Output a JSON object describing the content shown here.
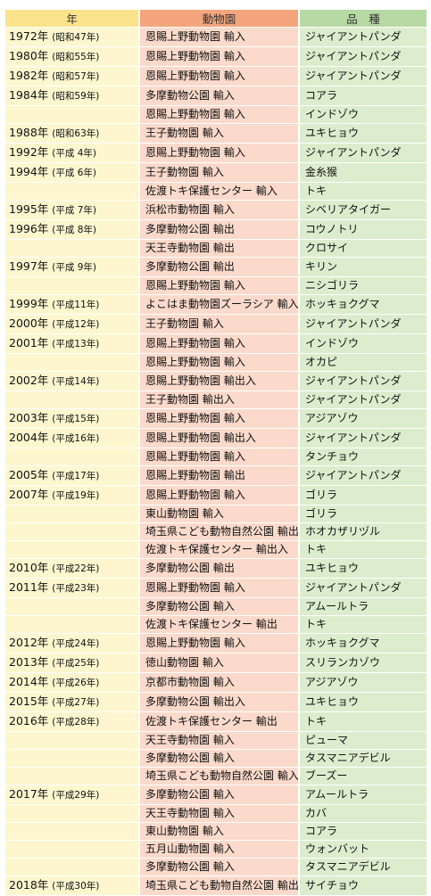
{
  "headers": {
    "year": "年",
    "zoo": "動物園",
    "species": "品　種"
  },
  "rows": [
    {
      "year": "1972年",
      "era": "(昭和47年)",
      "zoo": "恩賜上野動物園 輸入",
      "species": "ジャイアントパンダ"
    },
    {
      "year": "1980年",
      "era": "(昭和55年)",
      "zoo": "恩賜上野動物園 輸入",
      "species": "ジャイアントパンダ"
    },
    {
      "year": "1982年",
      "era": "(昭和57年)",
      "zoo": "恩賜上野動物園 輸入",
      "species": "ジャイアントパンダ"
    },
    {
      "year": "1984年",
      "era": "(昭和59年)",
      "zoo": "多摩動物公園 輸入",
      "species": "コアラ"
    },
    {
      "year": "",
      "era": "",
      "zoo": "恩賜上野動物園 輸入",
      "species": "インドゾウ"
    },
    {
      "year": "1988年",
      "era": "(昭和63年)",
      "zoo": "王子動物園 輸入",
      "species": "ユキヒョウ"
    },
    {
      "year": "1992年",
      "era": "(平成 4年)",
      "zoo": "恩賜上野動物園 輸入",
      "species": "ジャイアントパンダ"
    },
    {
      "year": "1994年",
      "era": "(平成 6年)",
      "zoo": "王子動物園 輸入",
      "species": "金糸猴"
    },
    {
      "year": "",
      "era": "",
      "zoo": "佐渡トキ保護センター 輸入",
      "species": "トキ"
    },
    {
      "year": "1995年",
      "era": "(平成 7年)",
      "zoo": "浜松市動物園 輸入",
      "species": "シベリアタイガー"
    },
    {
      "year": "1996年",
      "era": "(平成 8年)",
      "zoo": "多摩動物公園 輸出",
      "species": "コウノトリ"
    },
    {
      "year": "",
      "era": "",
      "zoo": "天王寺動物園 輸出",
      "species": "クロサイ"
    },
    {
      "year": "1997年",
      "era": "(平成 9年)",
      "zoo": " 多摩動物公園 輸出",
      "species": "キリン"
    },
    {
      "year": "",
      "era": "",
      "zoo": "恩賜上野動物園 輸入",
      "species": "ニシゴリラ"
    },
    {
      "year": "1999年",
      "era": "(平成11年)",
      "zoo": "よこはま動物園ズーラシア 輸入",
      "species": "ホッキョクグマ"
    },
    {
      "year": "2000年",
      "era": "(平成12年)",
      "zoo": "王子動物園 輸入",
      "species": "ジャイアントパンダ"
    },
    {
      "year": "2001年",
      "era": "(平成13年)",
      "zoo": "恩賜上野動物園 輸入",
      "species": "インドゾウ"
    },
    {
      "year": "",
      "era": "",
      "zoo": "恩賜上野動物園 輸入",
      "species": "オカピ"
    },
    {
      "year": "2002年",
      "era": "(平成14年)",
      "zoo": "恩賜上野動物園 輸出入",
      "species": "ジャイアントパンダ"
    },
    {
      "year": "",
      "era": "",
      "zoo": "王子動物園 輸出入",
      "species": "ジャイアントパンダ"
    },
    {
      "year": "2003年",
      "era": "(平成15年)",
      "zoo": "恩賜上野動物園 輸入",
      "species": "アジアゾウ"
    },
    {
      "year": "2004年",
      "era": "(平成16年)",
      "zoo": "恩賜上野動物園 輸出入",
      "species": "ジャイアントパンダ"
    },
    {
      "year": "",
      "era": "",
      "zoo": "恩賜上野動物園 輸入",
      "species": "タンチョウ"
    },
    {
      "year": "2005年",
      "era": "(平成17年)",
      "zoo": "恩賜上野動物園 輸出",
      "species": "ジャイアントパンダ"
    },
    {
      "year": "2007年",
      "era": "(平成19年)",
      "zoo": "恩賜上野動物園 輸入",
      "species": "ゴリラ"
    },
    {
      "year": "",
      "era": "",
      "zoo": "東山動物園 輸入",
      "species": "ゴリラ"
    },
    {
      "year": "",
      "era": "",
      "zoo": "埼玉県こども動物自然公園 輸出",
      "species": "ホオカザリヅル"
    },
    {
      "year": "",
      "era": "",
      "zoo": "佐渡トキ保護センター 輸出入",
      "species": "トキ"
    },
    {
      "year": "2010年",
      "era": "(平成22年)",
      "zoo": "多摩動物公園 輸出",
      "species": "ユキヒョウ"
    },
    {
      "year": "2011年",
      "era": "(平成23年)",
      "zoo": "恩賜上野動物園 輸入",
      "species": "ジャイアントパンダ"
    },
    {
      "year": "",
      "era": "",
      "zoo": "多摩動物公園 輸入",
      "species": "アムールトラ"
    },
    {
      "year": "",
      "era": "",
      "zoo": "佐渡トキ保護センター 輸出",
      "species": " トキ"
    },
    {
      "year": "2012年",
      "era": "(平成24年)",
      "zoo": "恩賜上野動物園 輸入",
      "species": "ホッキョクグマ"
    },
    {
      "year": "2013年",
      "era": "(平成25年)",
      "zoo": "徳山動物園 輸入",
      "species": "スリランカゾウ"
    },
    {
      "year": "2014年",
      "era": "(平成26年)",
      "zoo": "京都市動物園 輸入",
      "species": "アジアゾウ"
    },
    {
      "year": "2015年",
      "era": "(平成27年)",
      "zoo": "多摩動物公園 輸出入",
      "species": "ユキヒョウ"
    },
    {
      "year": "2016年",
      "era": "(平成28年)",
      "zoo": "佐渡トキ保護センター 輸出",
      "species": "トキ"
    },
    {
      "year": "",
      "era": "",
      "zoo": "天王寺動物園 輸入",
      "species": "ピューマ"
    },
    {
      "year": "",
      "era": "",
      "zoo": "多摩動物公園 輸入",
      "species": "タスマニアデビル"
    },
    {
      "year": "",
      "era": "",
      "zoo": "埼玉県こども動物自然公園 輸入",
      "species": "ブーズー"
    },
    {
      "year": "2017年",
      "era": "(平成29年)",
      "zoo": "多摩動物公園 輸入",
      "species": "アムールトラ"
    },
    {
      "year": "",
      "era": "",
      "zoo": "天王寺動物園 輸入",
      "species": "カバ"
    },
    {
      "year": "",
      "era": "",
      "zoo": "東山動物園 輸入",
      "species": "コアラ"
    },
    {
      "year": "",
      "era": "",
      "zoo": "五月山動物園 輸入",
      "species": "ウォンバット"
    },
    {
      "year": "",
      "era": "",
      "zoo": "多摩動物公園 輸入",
      "species": "タスマニアデビル"
    },
    {
      "year": "2018年",
      "era": "(平成30年)",
      "zoo": "埼玉県こども動物自然公園 輸出",
      "species": "サイチョウ"
    }
  ],
  "colors": {
    "year_header": "#fbe38c",
    "zoo_header": "#f4a57c",
    "species_header": "#b7d9a4",
    "year_cell": "#fdf6cf",
    "zoo_cell": "#fbdacb",
    "species_cell": "#dcedcd"
  }
}
